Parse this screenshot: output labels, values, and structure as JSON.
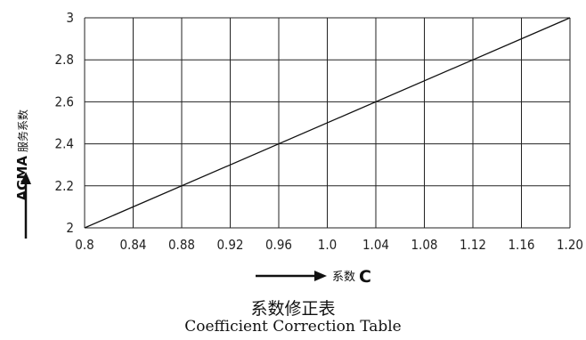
{
  "chart_data": {
    "type": "line",
    "title": "系数修正表",
    "subtitle": "Coefficient Correction Table",
    "xlabel_cn": "系数",
    "xlabel_var": "C",
    "ylabel_en": "AGMA",
    "ylabel_cn": "服务系数",
    "xlim": [
      0.8,
      1.2
    ],
    "ylim": [
      2,
      3
    ],
    "x_ticks": [
      "0.8",
      "0.84",
      "0.88",
      "0.92",
      "0.96",
      "1.0",
      "1.04",
      "1.08",
      "1.12",
      "1.16",
      "1.20"
    ],
    "y_ticks": [
      "2",
      "2.2",
      "2.4",
      "2.6",
      "2.8",
      "3"
    ],
    "grid": true,
    "series": [
      {
        "x": [
          0.8,
          1.2
        ],
        "y": [
          2.0,
          3.0
        ]
      }
    ]
  }
}
